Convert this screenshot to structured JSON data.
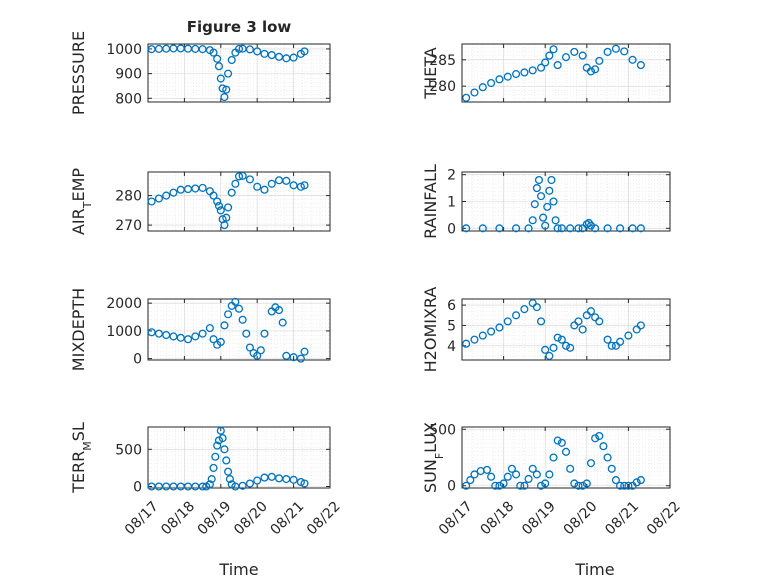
{
  "figure": {
    "title": "Figure 3 low",
    "xlabel": "Time",
    "colors": {
      "marker": "#0072bd",
      "axis": "#262626"
    }
  },
  "chart_data": [
    {
      "type": "scatter",
      "ylabel": "PRESSURE",
      "ylim": [
        785,
        1020
      ],
      "yticks": [
        {
          "v": 800,
          "label": "800"
        },
        {
          "v": 900,
          "label": "900"
        },
        {
          "v": 1000,
          "label": "1000"
        }
      ],
      "xlim": [
        0,
        5
      ],
      "xticklabels": [],
      "grid": true,
      "x": [
        0.1,
        0.3,
        0.5,
        0.7,
        0.9,
        1.1,
        1.3,
        1.5,
        1.7,
        1.8,
        1.9,
        1.95,
        2.0,
        2.05,
        2.1,
        2.15,
        2.2,
        2.3,
        2.4,
        2.5,
        2.6,
        2.8,
        3.0,
        3.2,
        3.4,
        3.6,
        3.8,
        4.0,
        4.2,
        4.3
      ],
      "values": [
        999,
        1000,
        1001,
        1002,
        1002,
        1001,
        1000,
        999,
        995,
        985,
        960,
        930,
        880,
        840,
        805,
        835,
        900,
        955,
        985,
        1000,
        1001,
        998,
        990,
        980,
        975,
        968,
        962,
        965,
        980,
        990
      ]
    },
    {
      "type": "scatter",
      "ylabel": "THETA",
      "ylim": [
        277,
        288
      ],
      "yticks": [
        {
          "v": 280,
          "label": "280"
        },
        {
          "v": 285,
          "label": "285"
        }
      ],
      "xlim": [
        0,
        5
      ],
      "xticklabels": [],
      "grid": true,
      "x": [
        0.1,
        0.3,
        0.5,
        0.7,
        0.9,
        1.1,
        1.3,
        1.5,
        1.7,
        1.9,
        2.0,
        2.1,
        2.2,
        2.3,
        2.5,
        2.7,
        2.9,
        3.0,
        3.1,
        3.2,
        3.3,
        3.5,
        3.7,
        3.9,
        4.1,
        4.3
      ],
      "values": [
        277.8,
        278.8,
        279.8,
        280.6,
        281.3,
        281.8,
        282.3,
        282.6,
        283.0,
        283.5,
        284.5,
        285.8,
        287.0,
        284.0,
        285.5,
        286.5,
        285.8,
        283.5,
        282.8,
        283.2,
        284.8,
        286.5,
        287.1,
        286.6,
        285.0,
        284.0
      ]
    },
    {
      "type": "scatter",
      "ylabel": "AIR_TEMP",
      "ylim": [
        268,
        288
      ],
      "yticks": [
        {
          "v": 270,
          "label": "270"
        },
        {
          "v": 280,
          "label": "280"
        }
      ],
      "xlim": [
        0,
        5
      ],
      "xticklabels": [],
      "grid": true,
      "x": [
        0.1,
        0.3,
        0.5,
        0.7,
        0.9,
        1.1,
        1.3,
        1.5,
        1.7,
        1.8,
        1.9,
        1.95,
        2.0,
        2.05,
        2.1,
        2.15,
        2.2,
        2.3,
        2.4,
        2.5,
        2.6,
        2.8,
        3.0,
        3.2,
        3.4,
        3.6,
        3.8,
        4.0,
        4.2,
        4.3
      ],
      "values": [
        278.0,
        279.0,
        280.0,
        281.0,
        282.0,
        282.2,
        282.4,
        282.6,
        281.5,
        280.0,
        278.0,
        276.5,
        275.0,
        272.0,
        270.0,
        272.5,
        276.0,
        281.0,
        284.0,
        286.5,
        286.7,
        285.5,
        283.0,
        282.0,
        284.0,
        285.2,
        285.0,
        283.5,
        283.0,
        283.5
      ]
    },
    {
      "type": "scatter",
      "ylabel": "RAINFALL",
      "ylim": [
        -0.1,
        2.1
      ],
      "yticks": [
        {
          "v": 0,
          "label": "0"
        },
        {
          "v": 1,
          "label": "1"
        },
        {
          "v": 2,
          "label": "2"
        }
      ],
      "xlim": [
        0,
        5
      ],
      "xticklabels": [],
      "grid": true,
      "x": [
        0.1,
        0.5,
        0.9,
        1.3,
        1.6,
        1.7,
        1.75,
        1.8,
        1.85,
        1.9,
        1.95,
        2.0,
        2.05,
        2.1,
        2.15,
        2.2,
        2.25,
        2.3,
        2.4,
        2.6,
        2.8,
        2.9,
        3.0,
        3.05,
        3.1,
        3.2,
        3.5,
        3.8,
        4.1,
        4.3
      ],
      "values": [
        0,
        0,
        0,
        0,
        0,
        0.3,
        0.9,
        1.5,
        1.8,
        1.2,
        0.4,
        0.1,
        0.8,
        1.4,
        1.8,
        1.0,
        0.3,
        0,
        0,
        0,
        0,
        0,
        0.15,
        0.2,
        0.1,
        0,
        0,
        0,
        0,
        0
      ]
    },
    {
      "type": "scatter",
      "ylabel": "MIXDEPTH",
      "ylim": [
        -50,
        2150
      ],
      "yticks": [
        {
          "v": 0,
          "label": "0"
        },
        {
          "v": 1000,
          "label": "1000"
        },
        {
          "v": 2000,
          "label": "2000"
        }
      ],
      "xlim": [
        0,
        5
      ],
      "xticklabels": [],
      "grid": true,
      "x": [
        0.1,
        0.3,
        0.5,
        0.7,
        0.9,
        1.1,
        1.3,
        1.5,
        1.7,
        1.8,
        1.9,
        2.0,
        2.1,
        2.2,
        2.3,
        2.4,
        2.5,
        2.6,
        2.7,
        2.8,
        2.9,
        3.0,
        3.1,
        3.2,
        3.4,
        3.5,
        3.6,
        3.7,
        3.8,
        4.0,
        4.2,
        4.3
      ],
      "values": [
        950,
        900,
        850,
        800,
        750,
        700,
        800,
        900,
        1100,
        700,
        500,
        600,
        1200,
        1600,
        1900,
        2050,
        1800,
        1400,
        900,
        400,
        200,
        100,
        300,
        900,
        1700,
        1850,
        1750,
        1300,
        100,
        50,
        0,
        250
      ]
    },
    {
      "type": "scatter",
      "ylabel": "H2OMIXRA",
      "ylim": [
        3.3,
        6.3
      ],
      "yticks": [
        {
          "v": 4,
          "label": "4"
        },
        {
          "v": 5,
          "label": "5"
        },
        {
          "v": 6,
          "label": "6"
        }
      ],
      "xlim": [
        0,
        5
      ],
      "xticklabels": [],
      "grid": true,
      "x": [
        0.1,
        0.3,
        0.5,
        0.7,
        0.9,
        1.1,
        1.3,
        1.5,
        1.7,
        1.8,
        1.9,
        2.0,
        2.1,
        2.2,
        2.3,
        2.4,
        2.5,
        2.6,
        2.7,
        2.8,
        2.9,
        3.0,
        3.1,
        3.2,
        3.3,
        3.5,
        3.6,
        3.7,
        3.8,
        4.0,
        4.2,
        4.3
      ],
      "values": [
        4.1,
        4.3,
        4.5,
        4.7,
        4.9,
        5.2,
        5.5,
        5.8,
        6.1,
        5.9,
        5.2,
        3.8,
        3.5,
        3.9,
        4.4,
        4.3,
        4.0,
        3.9,
        5.0,
        5.2,
        4.8,
        5.5,
        5.7,
        5.4,
        5.2,
        4.3,
        4.0,
        4.0,
        4.2,
        4.5,
        4.8,
        5.0
      ]
    },
    {
      "type": "scatter",
      "ylabel": "TERR_MSL",
      "ylim": [
        -20,
        800
      ],
      "yticks": [
        {
          "v": 0,
          "label": "0"
        },
        {
          "v": 500,
          "label": "500"
        }
      ],
      "xlim": [
        0,
        5
      ],
      "xticklabels": [
        "08/17",
        "08/18",
        "08/19",
        "08/20",
        "08/21",
        "08/22"
      ],
      "grid": true,
      "x": [
        0.1,
        0.3,
        0.5,
        0.7,
        0.9,
        1.1,
        1.3,
        1.5,
        1.6,
        1.7,
        1.75,
        1.8,
        1.85,
        1.9,
        1.95,
        2.0,
        2.05,
        2.1,
        2.15,
        2.2,
        2.25,
        2.3,
        2.4,
        2.6,
        2.8,
        3.0,
        3.2,
        3.4,
        3.6,
        3.8,
        4.0,
        4.2,
        4.3
      ],
      "values": [
        0,
        0,
        0,
        0,
        0,
        0,
        0,
        0,
        0,
        30,
        100,
        250,
        400,
        550,
        620,
        750,
        650,
        500,
        350,
        200,
        100,
        30,
        0,
        10,
        40,
        80,
        120,
        130,
        110,
        100,
        90,
        60,
        40
      ]
    },
    {
      "type": "scatter",
      "ylabel": "SUN_FLUX",
      "ylim": [
        -20,
        520
      ],
      "yticks": [
        {
          "v": 0,
          "label": "0"
        },
        {
          "v": 500,
          "label": "500"
        }
      ],
      "xlim": [
        0,
        5
      ],
      "xticklabels": [
        "08/17",
        "08/18",
        "08/19",
        "08/20",
        "08/21",
        "08/22"
      ],
      "grid": true,
      "x": [
        0.1,
        0.2,
        0.3,
        0.45,
        0.6,
        0.7,
        0.8,
        0.9,
        1.0,
        1.1,
        1.2,
        1.3,
        1.4,
        1.5,
        1.6,
        1.7,
        1.8,
        1.9,
        2.0,
        2.1,
        2.2,
        2.3,
        2.4,
        2.5,
        2.6,
        2.7,
        2.8,
        2.9,
        3.0,
        3.1,
        3.2,
        3.3,
        3.4,
        3.5,
        3.6,
        3.7,
        3.8,
        3.9,
        4.0,
        4.1,
        4.2,
        4.3
      ],
      "values": [
        0,
        50,
        100,
        130,
        140,
        80,
        0,
        0,
        20,
        80,
        150,
        100,
        0,
        0,
        60,
        150,
        100,
        0,
        20,
        100,
        250,
        400,
        380,
        300,
        150,
        20,
        0,
        0,
        20,
        200,
        420,
        440,
        350,
        250,
        150,
        50,
        0,
        0,
        0,
        0,
        30,
        50
      ]
    }
  ]
}
